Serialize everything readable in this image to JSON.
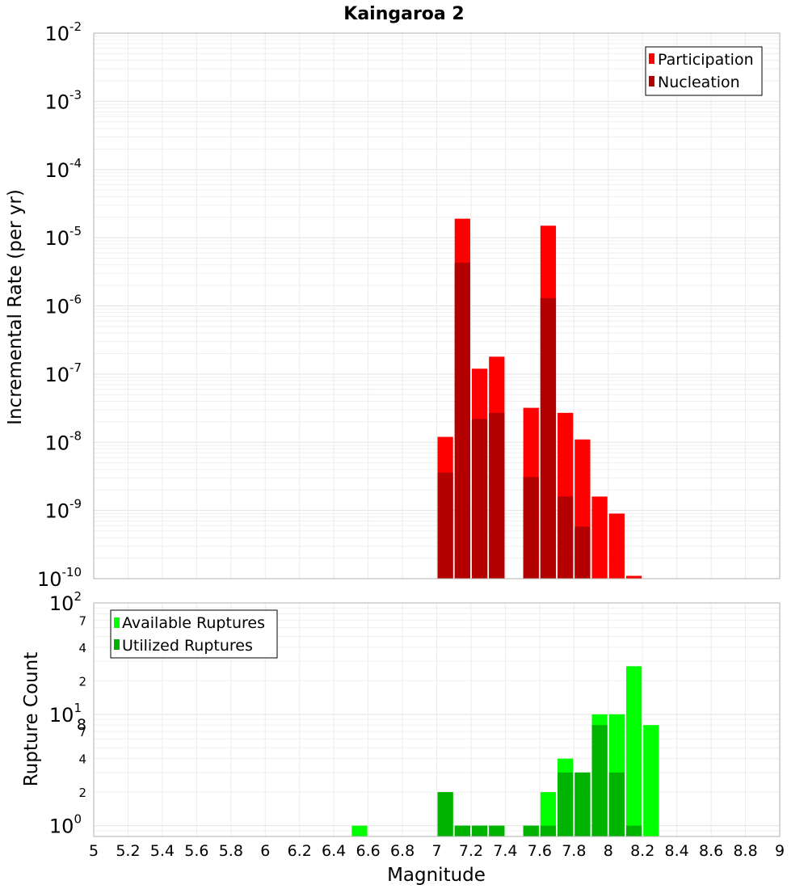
{
  "chart_data": [
    {
      "type": "bar",
      "title": "Kaingaroa 2",
      "xlabel": "Magnitude",
      "ylabel": "Incremental Rate (per yr)",
      "yscale": "log",
      "xlim": [
        5,
        9
      ],
      "ylim": [
        1e-10,
        0.01
      ],
      "bin_width": 0.1,
      "y_ticks": [
        {
          "base": "10",
          "exp": "-10"
        },
        {
          "base": "10",
          "exp": "-9"
        },
        {
          "base": "10",
          "exp": "-8"
        },
        {
          "base": "10",
          "exp": "-7"
        },
        {
          "base": "10",
          "exp": "-6"
        },
        {
          "base": "10",
          "exp": "-5"
        },
        {
          "base": "10",
          "exp": "-4"
        },
        {
          "base": "10",
          "exp": "-3"
        },
        {
          "base": "10",
          "exp": "-2"
        }
      ],
      "legend_position": "top-right",
      "series": [
        {
          "name": "Participation",
          "color": "#ff0000",
          "x": [
            7.05,
            7.15,
            7.25,
            7.35,
            7.55,
            7.65,
            7.75,
            7.85,
            7.95,
            8.05,
            8.15
          ],
          "values": [
            1.2e-08,
            1.9e-05,
            1.2e-07,
            1.8e-07,
            3.2e-08,
            1.5e-05,
            2.7e-08,
            1.1e-08,
            1.6e-09,
            9e-10,
            1.1e-10
          ]
        },
        {
          "name": "Nucleation",
          "color": "#b30000",
          "x": [
            7.05,
            7.15,
            7.25,
            7.35,
            7.55,
            7.65,
            7.75,
            7.85
          ],
          "values": [
            3.6e-09,
            4.3e-06,
            2.2e-08,
            2.7e-08,
            3.1e-09,
            1.3e-06,
            1.6e-09,
            5.8e-10
          ]
        }
      ]
    },
    {
      "type": "bar",
      "xlabel": "Magnitude",
      "ylabel": "Rupture Count",
      "yscale": "log",
      "xlim": [
        5,
        9
      ],
      "ylim": [
        0.8,
        100
      ],
      "bin_width": 0.1,
      "x_ticks": [
        "5",
        "5.2",
        "5.4",
        "5.6",
        "5.8",
        "6",
        "6.2",
        "6.4",
        "6.6",
        "6.8",
        "7",
        "7.2",
        "7.4",
        "7.6",
        "7.8",
        "8",
        "8.2",
        "8.4",
        "8.6",
        "8.8",
        "9"
      ],
      "y_major_ticks": [
        {
          "base": "10",
          "exp": "0"
        },
        {
          "base": "10",
          "exp": "1"
        },
        {
          "base": "10",
          "exp": "2"
        }
      ],
      "y_minor_ticks": [
        "8",
        "2",
        "4",
        "7",
        "2",
        "4",
        "7"
      ],
      "legend_position": "top-left",
      "series": [
        {
          "name": "Available Ruptures",
          "color": "#00ff00",
          "x": [
            6.55,
            7.05,
            7.15,
            7.25,
            7.35,
            7.55,
            7.65,
            7.75,
            7.85,
            7.95,
            8.05,
            8.15,
            8.25
          ],
          "values": [
            1,
            2,
            1,
            1,
            1,
            1,
            2,
            4,
            3,
            10,
            10,
            27,
            8
          ]
        },
        {
          "name": "Utilized Ruptures",
          "color": "#00b300",
          "x": [
            7.05,
            7.15,
            7.25,
            7.35,
            7.55,
            7.65,
            7.75,
            7.85,
            7.95,
            8.05,
            8.15
          ],
          "values": [
            2,
            1,
            1,
            1,
            1,
            1,
            3,
            3,
            8,
            3,
            1
          ]
        }
      ]
    }
  ]
}
